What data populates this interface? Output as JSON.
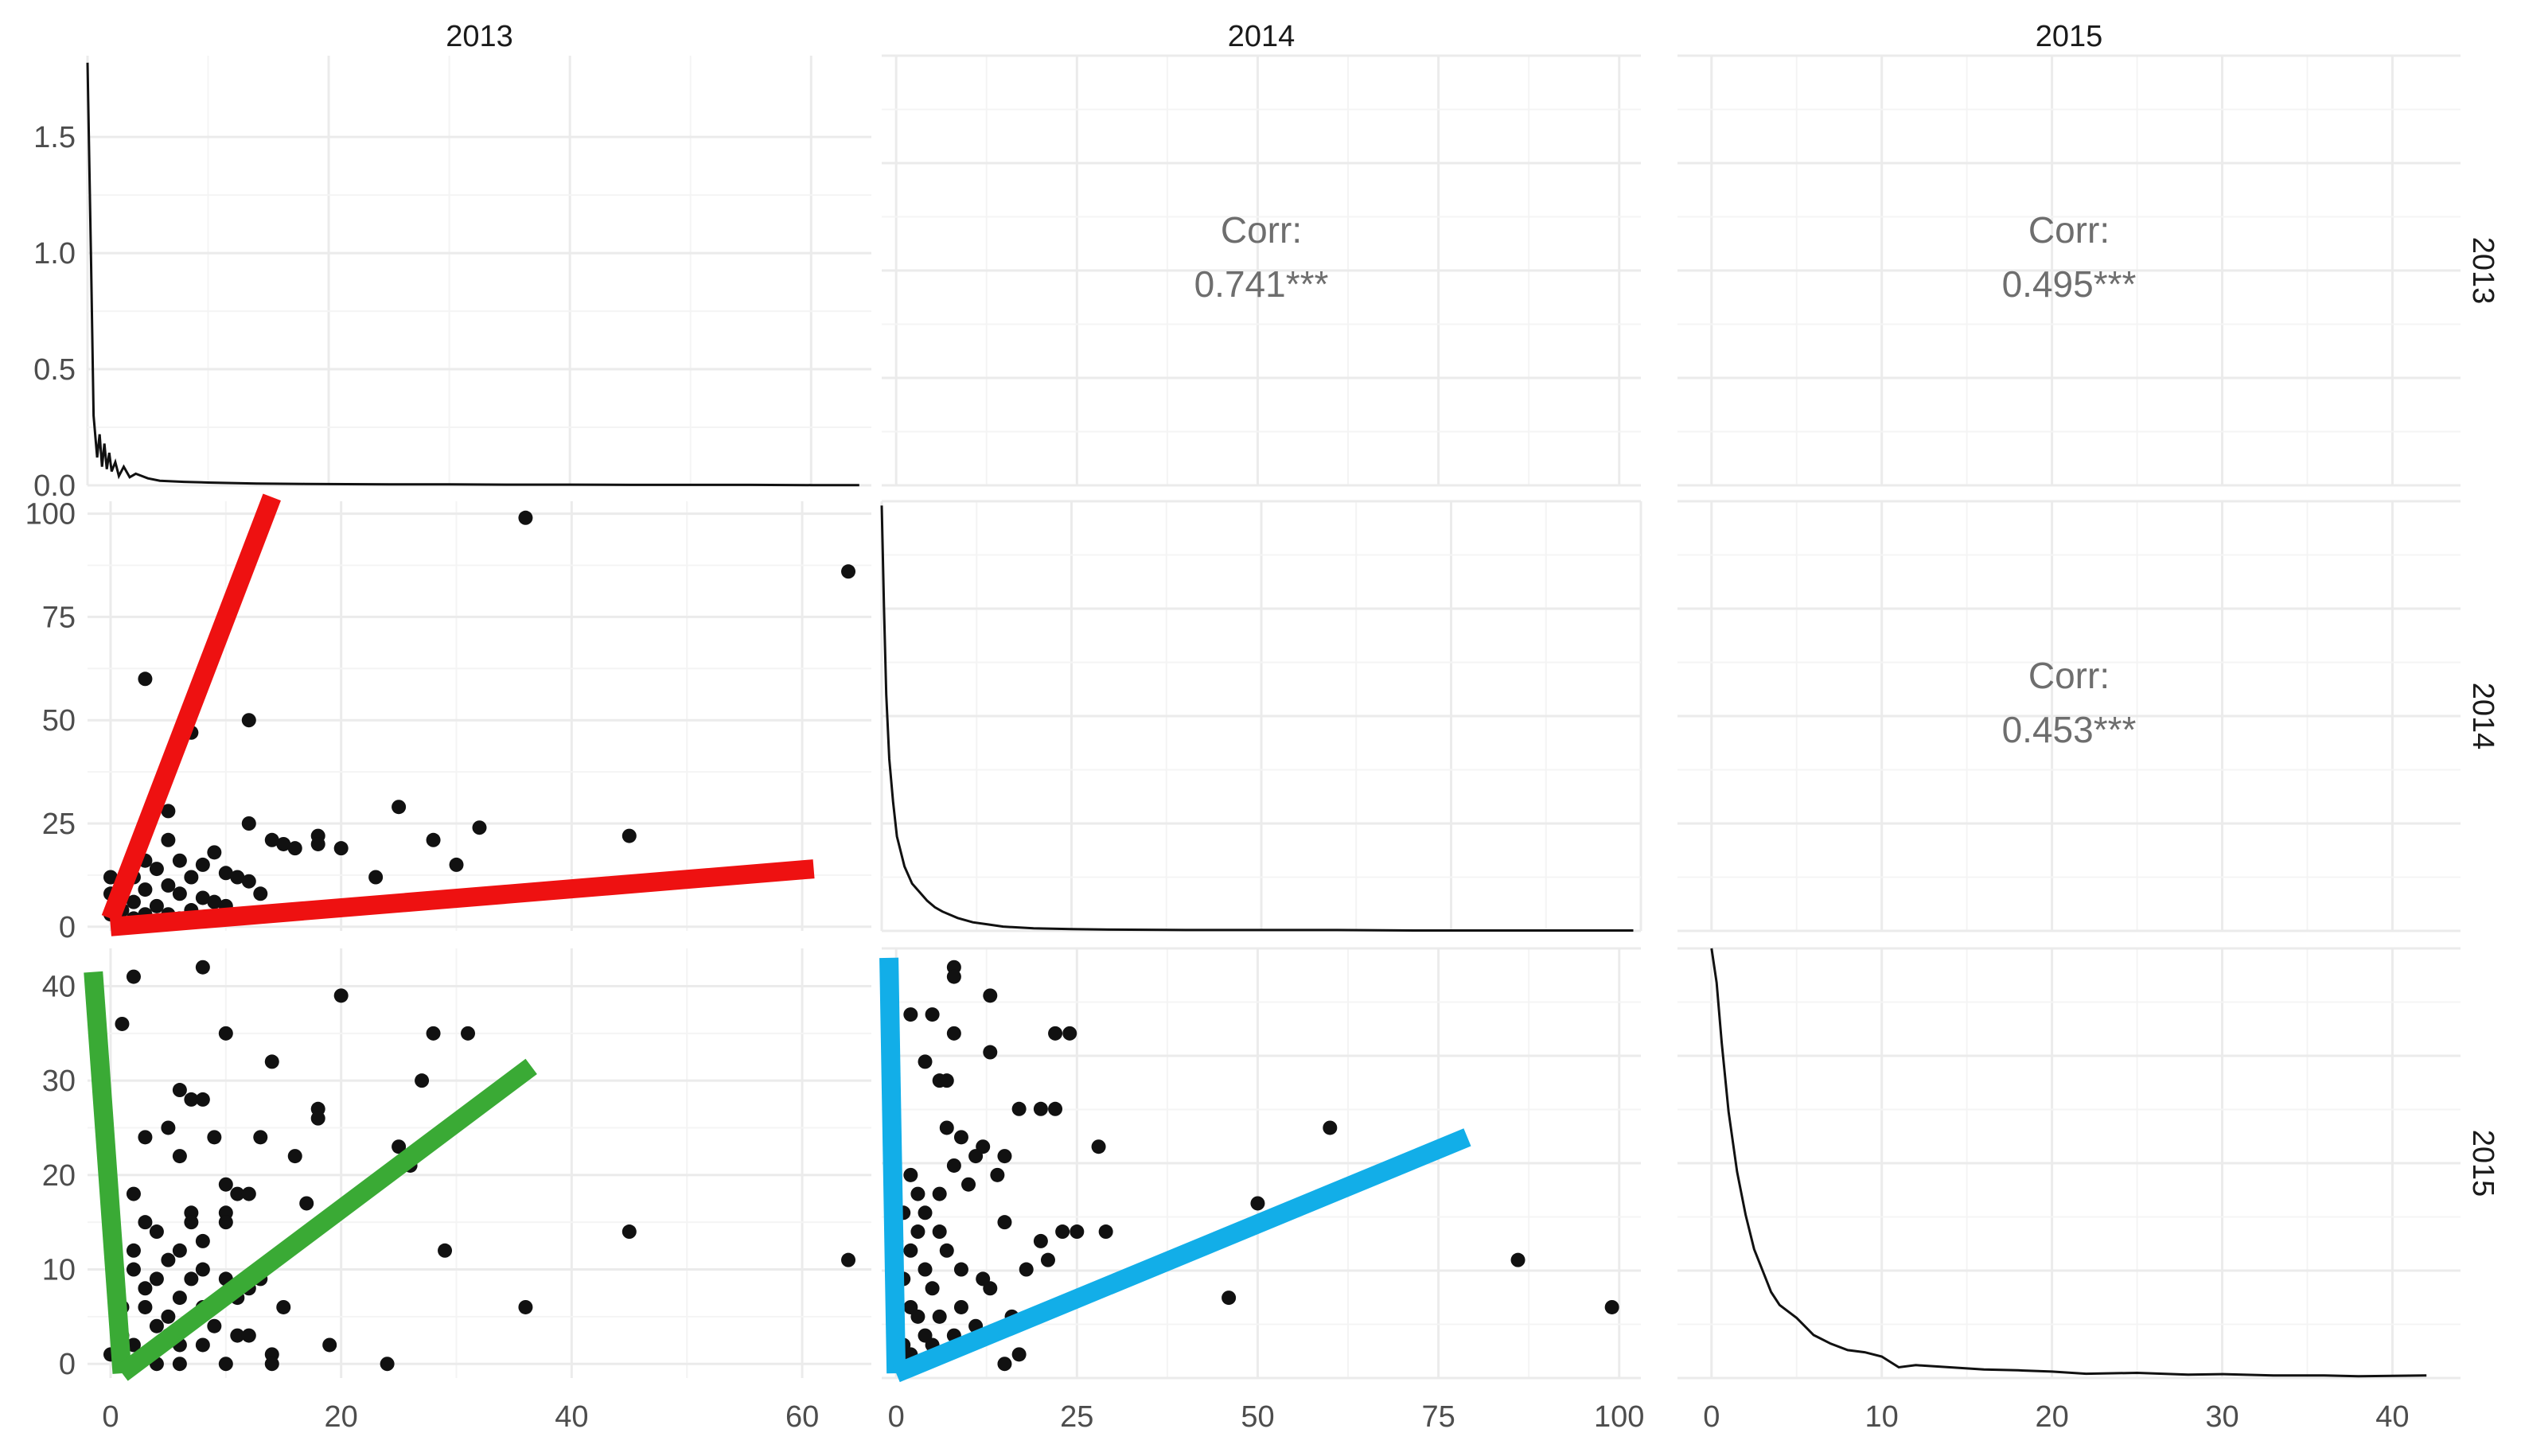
{
  "chart_data": {
    "type": "scatter-matrix",
    "variables": [
      "2013",
      "2014",
      "2015"
    ],
    "panels": [
      {
        "row": 0,
        "col": 0,
        "type": "density",
        "variable": "2013",
        "xlim": [
          0,
          65
        ],
        "ylim": [
          0,
          1.85
        ],
        "x_ticks": [
          0,
          20,
          40,
          60
        ],
        "y_ticks": [
          "0.0",
          "0.5",
          "1.0",
          "1.5"
        ],
        "x": [
          0,
          0.3,
          0.5,
          0.8,
          1,
          1.2,
          1.4,
          1.6,
          1.8,
          2,
          2.3,
          2.6,
          3,
          3.5,
          4,
          5,
          6,
          8,
          10,
          14,
          18,
          25,
          30,
          35,
          40,
          45,
          50,
          55,
          60,
          64
        ],
        "y": [
          1.82,
          0.95,
          0.3,
          0.12,
          0.22,
          0.08,
          0.18,
          0.07,
          0.14,
          0.06,
          0.1,
          0.04,
          0.08,
          0.035,
          0.05,
          0.03,
          0.02,
          0.015,
          0.012,
          0.008,
          0.006,
          0.004,
          0.004,
          0.003,
          0.003,
          0.002,
          0.002,
          0.002,
          0.001,
          0.001
        ]
      },
      {
        "row": 0,
        "col": 1,
        "type": "corr",
        "label": "Corr:",
        "value": "0.741***"
      },
      {
        "row": 0,
        "col": 2,
        "type": "corr",
        "label": "Corr:",
        "value": "0.495***"
      },
      {
        "row": 1,
        "col": 0,
        "type": "scatter",
        "x_var": "2013",
        "y_var": "2014",
        "xlim": [
          -2,
          66
        ],
        "ylim": [
          -1,
          103
        ],
        "y_ticks": [
          0,
          25,
          50,
          75,
          100
        ],
        "points": [
          [
            36,
            99
          ],
          [
            64,
            86
          ],
          [
            3,
            60
          ],
          [
            12,
            50
          ],
          [
            7,
            47
          ],
          [
            25,
            29
          ],
          [
            5,
            28
          ],
          [
            45,
            22
          ],
          [
            32,
            24
          ],
          [
            12,
            25
          ],
          [
            14,
            21
          ],
          [
            15,
            20
          ],
          [
            16,
            19
          ],
          [
            18,
            22
          ],
          [
            18,
            20
          ],
          [
            20,
            19
          ],
          [
            28,
            21
          ],
          [
            30,
            15
          ],
          [
            23,
            12
          ],
          [
            5,
            21
          ],
          [
            9,
            18
          ],
          [
            3,
            16
          ],
          [
            6,
            16
          ],
          [
            8,
            15
          ],
          [
            10,
            13
          ],
          [
            11,
            12
          ],
          [
            12,
            11
          ],
          [
            13,
            8
          ],
          [
            4,
            14
          ],
          [
            2,
            12
          ],
          [
            1,
            11
          ],
          [
            7,
            12
          ],
          [
            5,
            10
          ],
          [
            3,
            9
          ],
          [
            6,
            8
          ],
          [
            8,
            7
          ],
          [
            9,
            6
          ],
          [
            10,
            5
          ],
          [
            2,
            6
          ],
          [
            4,
            5
          ],
          [
            1,
            4
          ],
          [
            3,
            3
          ],
          [
            5,
            3
          ],
          [
            7,
            4
          ],
          [
            2,
            2
          ],
          [
            0,
            12
          ],
          [
            0,
            8
          ],
          [
            0,
            3
          ],
          [
            1,
            1
          ],
          [
            6,
            2
          ]
        ],
        "highlights": [
          {
            "color": "#ee1111",
            "from": [
              0,
              2
            ],
            "to": [
              14,
              104
            ]
          },
          {
            "color": "#ee1111",
            "from": [
              0,
              0
            ],
            "to": [
              61,
              14
            ]
          }
        ]
      },
      {
        "row": 1,
        "col": 1,
        "type": "density",
        "variable": "2014",
        "xlim": [
          0,
          100
        ],
        "ylim": [
          0,
          1
        ],
        "x": [
          0,
          0.3,
          0.6,
          1,
          1.5,
          2,
          3,
          4,
          5,
          6,
          7,
          8,
          10,
          12,
          14,
          16,
          20,
          25,
          30,
          40,
          50,
          60,
          70,
          80,
          90,
          99
        ],
        "y": [
          0.99,
          0.75,
          0.55,
          0.4,
          0.3,
          0.22,
          0.15,
          0.11,
          0.09,
          0.07,
          0.055,
          0.045,
          0.03,
          0.02,
          0.015,
          0.01,
          0.006,
          0.004,
          0.003,
          0.002,
          0.002,
          0.002,
          0.001,
          0.001,
          0.001,
          0.001
        ]
      },
      {
        "row": 1,
        "col": 2,
        "type": "corr",
        "label": "Corr:",
        "value": "0.453***"
      },
      {
        "row": 2,
        "col": 0,
        "type": "scatter",
        "x_var": "2013",
        "y_var": "2015",
        "xlim": [
          -2,
          66
        ],
        "ylim": [
          -1.5,
          44
        ],
        "y_ticks": [
          0,
          10,
          20,
          30,
          40
        ],
        "points": [
          [
            2,
            41
          ],
          [
            8,
            42
          ],
          [
            20,
            39
          ],
          [
            1,
            36
          ],
          [
            10,
            35
          ],
          [
            28,
            35
          ],
          [
            31,
            35
          ],
          [
            14,
            32
          ],
          [
            27,
            30
          ],
          [
            6,
            29
          ],
          [
            7,
            28
          ],
          [
            8,
            28
          ],
          [
            18,
            27
          ],
          [
            18,
            26
          ],
          [
            5,
            25
          ],
          [
            3,
            24
          ],
          [
            9,
            24
          ],
          [
            13,
            24
          ],
          [
            16,
            22
          ],
          [
            25,
            23
          ],
          [
            26,
            21
          ],
          [
            6,
            22
          ],
          [
            10,
            19
          ],
          [
            11,
            18
          ],
          [
            12,
            18
          ],
          [
            17,
            17
          ],
          [
            10,
            16
          ],
          [
            7,
            16
          ],
          [
            7,
            15
          ],
          [
            10,
            15
          ],
          [
            4,
            14
          ],
          [
            8,
            13
          ],
          [
            45,
            14
          ],
          [
            29,
            12
          ],
          [
            64,
            11
          ],
          [
            6,
            12
          ],
          [
            8,
            10
          ],
          [
            10,
            9
          ],
          [
            11,
            7
          ],
          [
            12,
            8
          ],
          [
            13,
            9
          ],
          [
            15,
            6
          ],
          [
            36,
            6
          ],
          [
            9,
            4
          ],
          [
            11,
            3
          ],
          [
            14,
            1
          ],
          [
            14,
            0
          ],
          [
            19,
            2
          ],
          [
            24,
            0
          ],
          [
            10,
            0
          ],
          [
            2,
            12
          ],
          [
            2,
            10
          ],
          [
            3,
            8
          ],
          [
            3,
            6
          ],
          [
            4,
            4
          ],
          [
            5,
            3
          ],
          [
            6,
            2
          ],
          [
            2,
            2
          ],
          [
            3,
            1
          ],
          [
            4,
            0
          ],
          [
            5,
            5
          ],
          [
            6,
            7
          ],
          [
            7,
            9
          ],
          [
            8,
            6
          ],
          [
            4,
            9
          ],
          [
            2,
            18
          ],
          [
            3,
            15
          ],
          [
            5,
            11
          ],
          [
            1,
            6
          ],
          [
            1,
            3
          ],
          [
            0,
            1
          ],
          [
            1,
            0
          ],
          [
            6,
            0
          ],
          [
            8,
            2
          ],
          [
            12,
            3
          ]
        ],
        "highlights": [
          {
            "color": "#3aaa35",
            "from": [
              -1.5,
              41.5
            ],
            "to": [
              1,
              -1
            ]
          },
          {
            "color": "#3aaa35",
            "from": [
              1,
              -1
            ],
            "to": [
              36.5,
              31.5
            ]
          }
        ]
      },
      {
        "row": 2,
        "col": 1,
        "type": "scatter",
        "x_var": "2014",
        "y_var": "2015",
        "xlim": [
          -2,
          103
        ],
        "ylim": [
          -1.5,
          44
        ],
        "x_ticks": [
          0,
          25,
          50,
          75,
          100
        ],
        "points": [
          [
            8,
            42
          ],
          [
            8,
            41
          ],
          [
            13,
            39
          ],
          [
            2,
            37
          ],
          [
            5,
            37
          ],
          [
            8,
            35
          ],
          [
            22,
            35
          ],
          [
            24,
            35
          ],
          [
            13,
            33
          ],
          [
            4,
            32
          ],
          [
            6,
            30
          ],
          [
            7,
            30
          ],
          [
            17,
            27
          ],
          [
            20,
            27
          ],
          [
            22,
            27
          ],
          [
            7,
            25
          ],
          [
            60,
            25
          ],
          [
            9,
            24
          ],
          [
            12,
            23
          ],
          [
            11,
            22
          ],
          [
            15,
            22
          ],
          [
            28,
            23
          ],
          [
            50,
            17
          ],
          [
            8,
            21
          ],
          [
            10,
            19
          ],
          [
            6,
            18
          ],
          [
            14,
            20
          ],
          [
            23,
            14
          ],
          [
            15,
            15
          ],
          [
            20,
            13
          ],
          [
            25,
            14
          ],
          [
            29,
            14
          ],
          [
            18,
            10
          ],
          [
            21,
            11
          ],
          [
            86,
            11
          ],
          [
            46,
            7
          ],
          [
            99,
            6
          ],
          [
            7,
            12
          ],
          [
            9,
            10
          ],
          [
            12,
            9
          ],
          [
            13,
            8
          ],
          [
            16,
            5
          ],
          [
            11,
            4
          ],
          [
            8,
            3
          ],
          [
            7,
            1
          ],
          [
            17,
            1
          ],
          [
            15,
            0
          ],
          [
            3,
            14
          ],
          [
            2,
            12
          ],
          [
            4,
            10
          ],
          [
            1,
            9
          ],
          [
            5,
            8
          ],
          [
            2,
            6
          ],
          [
            3,
            5
          ],
          [
            4,
            3
          ],
          [
            1,
            2
          ],
          [
            2,
            1
          ],
          [
            0,
            0
          ],
          [
            5,
            2
          ],
          [
            6,
            5
          ],
          [
            3,
            18
          ],
          [
            2,
            20
          ],
          [
            1,
            16
          ],
          [
            4,
            16
          ],
          [
            6,
            14
          ],
          [
            0,
            10
          ],
          [
            0,
            6
          ],
          [
            0,
            13
          ],
          [
            9,
            6
          ]
        ],
        "highlights": [
          {
            "color": "#12aee8",
            "from": [
              -1,
              43
            ],
            "to": [
              0,
              -1
            ]
          },
          {
            "color": "#12aee8",
            "from": [
              0,
              -1
            ],
            "to": [
              79,
              24
            ]
          }
        ]
      },
      {
        "row": 2,
        "col": 2,
        "type": "density",
        "variable": "2015",
        "xlim": [
          -2,
          44
        ],
        "ylim": [
          0,
          1
        ],
        "x_ticks": [
          0,
          10,
          20,
          30,
          40
        ],
        "x": [
          0,
          0.3,
          0.6,
          1,
          1.5,
          2,
          2.5,
          3,
          3.5,
          4,
          5,
          6,
          7,
          8,
          9,
          10,
          11,
          12,
          14,
          16,
          18,
          20,
          22,
          25,
          28,
          30,
          33,
          36,
          38,
          40,
          42
        ],
        "y": [
          1,
          0.92,
          0.78,
          0.62,
          0.48,
          0.38,
          0.3,
          0.25,
          0.2,
          0.17,
          0.14,
          0.1,
          0.08,
          0.065,
          0.06,
          0.05,
          0.025,
          0.03,
          0.025,
          0.02,
          0.018,
          0.015,
          0.01,
          0.012,
          0.008,
          0.009,
          0.006,
          0.006,
          0.004,
          0.005,
          0.006
        ]
      }
    ]
  }
}
